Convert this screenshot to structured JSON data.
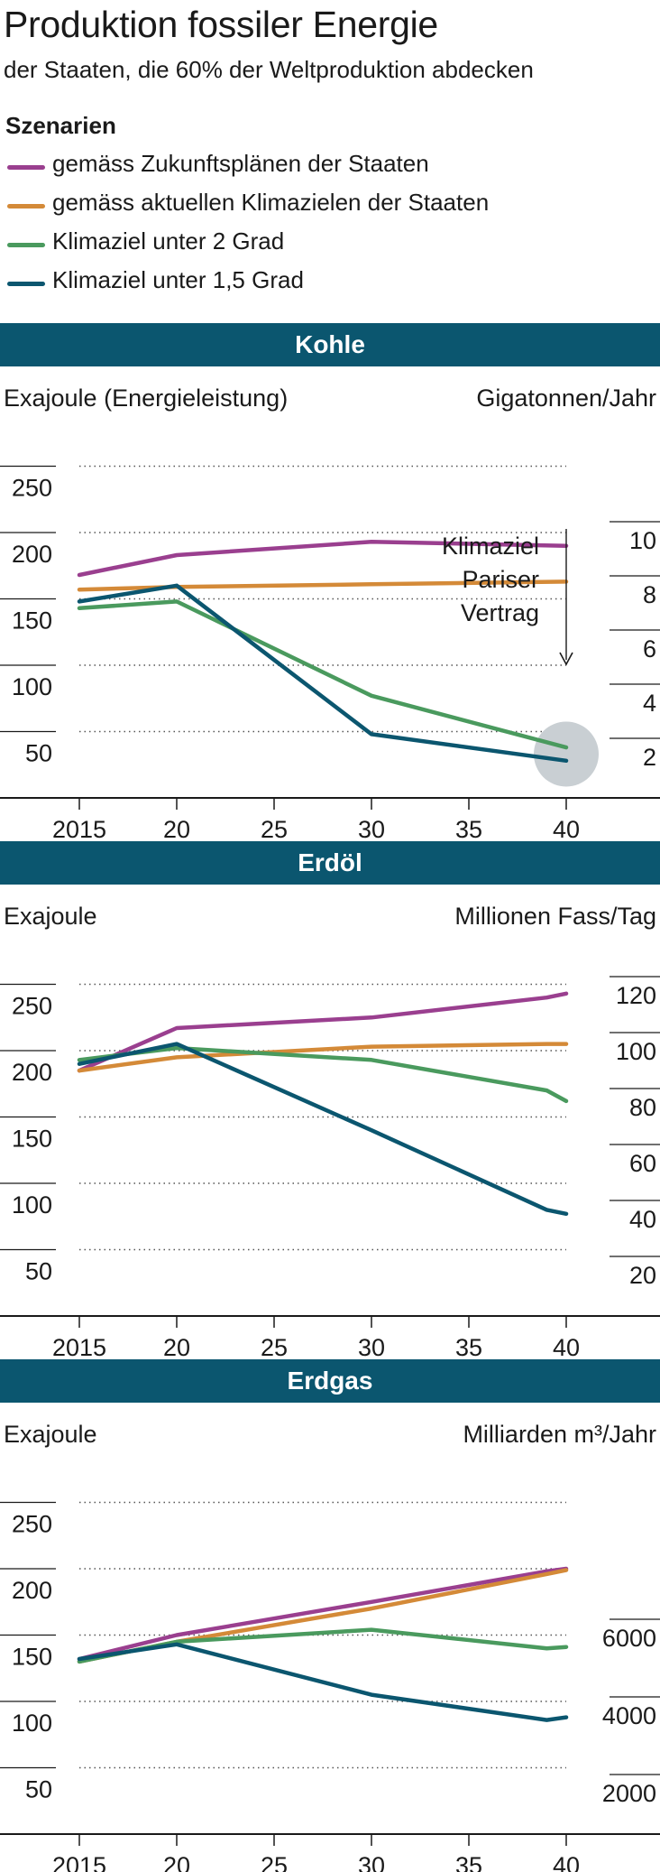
{
  "title": "Produktion fossiler Energie",
  "subtitle": "der Staaten, die 60% der Weltproduktion abdecken",
  "legend": {
    "heading": "Szenarien",
    "items": [
      {
        "label": "gemäss Zukunftsplänen der Staaten",
        "color": "#9a3f8f"
      },
      {
        "label": "gemäss aktuellen Klimazielen der Staaten",
        "color": "#d48a38"
      },
      {
        "label": "Klimaziel unter 2 Grad",
        "color": "#4a9a5e"
      },
      {
        "label": "Klimaziel unter 1,5 Grad",
        "color": "#0b566f"
      }
    ]
  },
  "chart_data": [
    {
      "type": "line",
      "title": "Kohle",
      "ylabel": "Exajoule (Energieleistung)",
      "y2label": "Gigatonnen/Jahr",
      "x": [
        2015,
        2020,
        2030,
        2040
      ],
      "xticks": [
        "2015",
        "20",
        "25",
        "30",
        "35",
        "40"
      ],
      "xlim": [
        2015,
        2040
      ],
      "ylim": [
        0,
        250
      ],
      "yticks": [
        50,
        100,
        150,
        200,
        250
      ],
      "y2ticks": [
        2,
        4,
        6,
        8,
        10
      ],
      "series": [
        {
          "name": "gemäss Zukunftsplänen der Staaten",
          "values": [
            168,
            183,
            193,
            190
          ]
        },
        {
          "name": "gemäss aktuellen Klimazielen der Staaten",
          "values": [
            157,
            159,
            161,
            163
          ]
        },
        {
          "name": "Klimaziel unter 2 Grad",
          "values": [
            143,
            148,
            77,
            38
          ]
        },
        {
          "name": "Klimaziel unter 1,5 Grad",
          "values": [
            148,
            160,
            48,
            28
          ]
        }
      ],
      "annotation": {
        "lines": [
          "Klimaziel",
          "Pariser",
          "Vertrag"
        ],
        "target_year": 2040
      }
    },
    {
      "type": "line",
      "title": "Erdöl",
      "ylabel": "Exajoule",
      "y2label": "Millionen Fass/Tag",
      "x": [
        2015,
        2020,
        2030,
        2039,
        2040
      ],
      "xticks": [
        "2015",
        "20",
        "25",
        "30",
        "35",
        "40"
      ],
      "xlim": [
        2015,
        2040
      ],
      "ylim": [
        0,
        250
      ],
      "yticks": [
        50,
        100,
        150,
        200,
        250
      ],
      "y2ticks": [
        20,
        40,
        60,
        80,
        100,
        120
      ],
      "series": [
        {
          "name": "gemäss Zukunftsplänen der Staaten",
          "values": [
            185,
            217,
            225,
            240,
            243
          ]
        },
        {
          "name": "gemäss aktuellen Klimazielen der Staaten",
          "values": [
            185,
            195,
            203,
            205,
            205
          ]
        },
        {
          "name": "Klimaziel unter 2 Grad",
          "values": [
            193,
            202,
            193,
            170,
            162
          ]
        },
        {
          "name": "Klimaziel unter 1,5 Grad",
          "values": [
            190,
            205,
            140,
            80,
            77
          ]
        }
      ]
    },
    {
      "type": "line",
      "title": "Erdgas",
      "ylabel": "Exajoule",
      "y2label": "Milliarden m³/Jahr",
      "x": [
        2015,
        2020,
        2030,
        2039,
        2040
      ],
      "xticks": [
        "2015",
        "20",
        "25",
        "30",
        "35",
        "40"
      ],
      "xlim": [
        2015,
        2040
      ],
      "ylim": [
        0,
        250
      ],
      "yticks": [
        50,
        100,
        150,
        200,
        250
      ],
      "y2ticks": [
        2000,
        4000,
        6000
      ],
      "series": [
        {
          "name": "gemäss Zukunftsplänen der Staaten",
          "values": [
            132,
            150,
            175,
            198,
            200
          ]
        },
        {
          "name": "gemäss aktuellen Klimazielen der Staaten",
          "values": [
            130,
            145,
            170,
            196,
            199
          ]
        },
        {
          "name": "Klimaziel unter 2 Grad",
          "values": [
            130,
            145,
            154,
            140,
            141
          ]
        },
        {
          "name": "Klimaziel unter 1,5 Grad",
          "values": [
            132,
            143,
            105,
            86,
            88
          ]
        }
      ]
    }
  ]
}
